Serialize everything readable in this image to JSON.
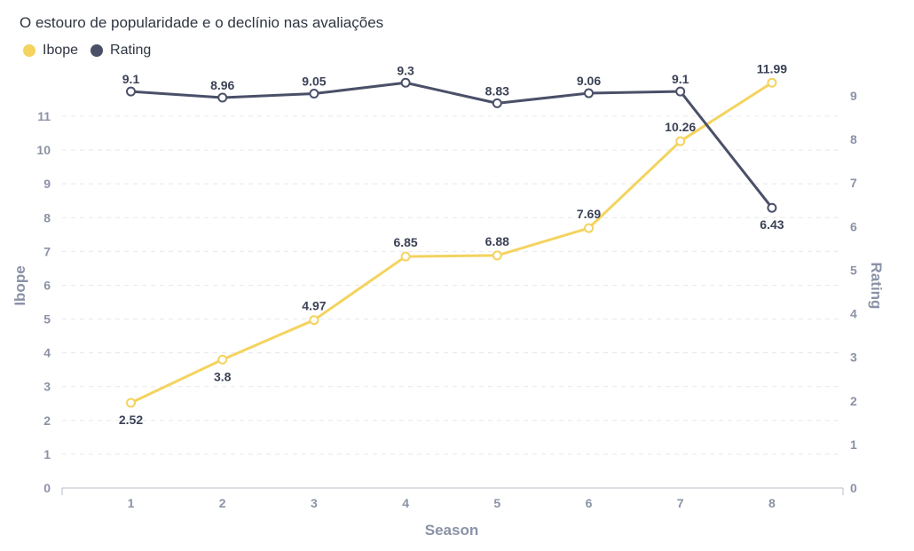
{
  "chart_data": {
    "type": "line",
    "title": "O estouro de popularidade e o declínio nas avaliações",
    "xlabel": "Season",
    "ylabel_left": "Ibope",
    "ylabel_right": "Rating",
    "categories": [
      "1",
      "2",
      "3",
      "4",
      "5",
      "6",
      "7",
      "8"
    ],
    "left_ylim": [
      0,
      11
    ],
    "left_ticks": [
      0,
      1,
      2,
      3,
      4,
      5,
      6,
      7,
      8,
      9,
      10,
      11
    ],
    "right_ylim": [
      0,
      9
    ],
    "right_ticks": [
      0,
      1,
      2,
      3,
      4,
      5,
      6,
      7,
      8,
      9
    ],
    "grid": true,
    "legend_position": "top-left",
    "series": [
      {
        "name": "Ibope",
        "axis": "left",
        "color": "#f4d35e",
        "values": [
          2.52,
          3.8,
          4.97,
          6.85,
          6.88,
          7.69,
          10.26,
          11.99
        ],
        "labels": [
          "2.52",
          "3.8",
          "4.97",
          "6.85",
          "6.88",
          "7.69",
          "10.26",
          "11.99"
        ]
      },
      {
        "name": "Rating",
        "axis": "right",
        "color": "#4a5068",
        "values": [
          9.1,
          8.96,
          9.05,
          9.3,
          8.83,
          9.06,
          9.1,
          6.43
        ],
        "labels": [
          "9.1",
          "8.96",
          "9.05",
          "9.3",
          "8.83",
          "9.06",
          "9.1",
          "6.43"
        ]
      }
    ]
  }
}
